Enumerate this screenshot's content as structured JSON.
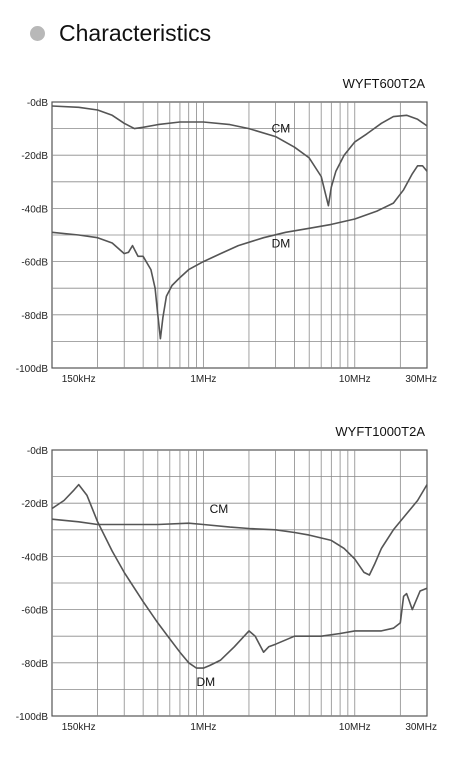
{
  "header": {
    "title": "Characteristics",
    "bullet_color": "#b8b8b8"
  },
  "chart_data": [
    {
      "type": "line",
      "title": "WYFT600T2A",
      "xscale": "log",
      "xlim_hz": [
        100000,
        30000000
      ],
      "ylim": [
        -100,
        0
      ],
      "yticks": [
        "-0dB",
        "-20dB",
        "-40dB",
        "-60dB",
        "-80dB",
        "-100dB"
      ],
      "ytick_values": [
        0,
        -20,
        -40,
        -60,
        -80,
        -100
      ],
      "xticks": [
        "150kHz",
        "1MHz",
        "10MHz",
        "30MHz"
      ],
      "xtick_values_hz": [
        150000,
        1000000,
        10000000,
        30000000
      ],
      "grid": true,
      "line_color": "#555555",
      "series": [
        {
          "name": "CM",
          "x_hz": [
            100000,
            150000,
            200000,
            250000,
            300000,
            350000,
            400000,
            500000,
            700000,
            1000000,
            1500000,
            2000000,
            3000000,
            4000000,
            5000000,
            6000000,
            6700000,
            7000000,
            7500000,
            8500000,
            10000000,
            12000000,
            15000000,
            18000000,
            22000000,
            26000000,
            30000000
          ],
          "y": [
            -1.5,
            -2,
            -3,
            -5,
            -8,
            -10,
            -9.5,
            -8.5,
            -7.5,
            -7.5,
            -8.5,
            -10,
            -13,
            -17,
            -21,
            -28,
            -39,
            -32,
            -26,
            -20,
            -15,
            -12,
            -8,
            -5.5,
            -5,
            -6.5,
            -9
          ]
        },
        {
          "name": "DM",
          "x_hz": [
            100000,
            150000,
            200000,
            250000,
            300000,
            320000,
            340000,
            370000,
            400000,
            450000,
            480000,
            500000,
            520000,
            540000,
            570000,
            620000,
            700000,
            800000,
            1000000,
            1300000,
            1700000,
            2500000,
            3500000,
            5000000,
            7000000,
            10000000,
            14000000,
            18000000,
            21000000,
            24000000,
            26000000,
            28000000,
            30000000
          ],
          "y": [
            -49,
            -50,
            -51,
            -53,
            -57,
            -56.5,
            -54,
            -58,
            -58,
            -63,
            -70,
            -80,
            -89,
            -81,
            -73,
            -69,
            -66,
            -63,
            -60,
            -57,
            -54,
            -51,
            -49,
            -47.5,
            -46,
            -44,
            -41,
            -38,
            -33,
            -27,
            -24,
            -24,
            -26
          ]
        }
      ]
    },
    {
      "type": "line",
      "title": "WYFT1000T2A",
      "xscale": "log",
      "xlim_hz": [
        100000,
        30000000
      ],
      "ylim": [
        -100,
        0
      ],
      "yticks": [
        "-0dB",
        "-20dB",
        "-40dB",
        "-60dB",
        "-80dB",
        "-100dB"
      ],
      "ytick_values": [
        0,
        -20,
        -40,
        -60,
        -80,
        -100
      ],
      "xticks": [
        "150kHz",
        "1MHz",
        "10MHz",
        "30MHz"
      ],
      "xtick_values_hz": [
        150000,
        1000000,
        10000000,
        30000000
      ],
      "grid": true,
      "line_color": "#555555",
      "series": [
        {
          "name": "CM",
          "x_hz": [
            100000,
            150000,
            200000,
            300000,
            500000,
            800000,
            1000000,
            1500000,
            2000000,
            3000000,
            4000000,
            5000000,
            7000000,
            8500000,
            10000000,
            11500000,
            12500000,
            13500000,
            15000000,
            18000000,
            22000000,
            26000000,
            30000000
          ],
          "y": [
            -26,
            -27,
            -28,
            -28,
            -28,
            -27.5,
            -28,
            -29,
            -29.5,
            -30,
            -31,
            -32,
            -34,
            -37,
            -41,
            -46,
            -47,
            -43,
            -37,
            -30,
            -24,
            -19,
            -13
          ]
        },
        {
          "name": "DM",
          "x_hz": [
            100000,
            120000,
            140000,
            150000,
            170000,
            200000,
            250000,
            300000,
            400000,
            500000,
            600000,
            700000,
            800000,
            900000,
            1000000,
            1100000,
            1300000,
            1600000,
            2000000,
            2200000,
            2500000,
            2700000,
            3000000,
            4000000,
            5000000,
            6000000,
            8000000,
            10000000,
            15000000,
            18000000,
            20000000,
            21000000,
            22000000,
            23000000,
            24000000,
            27000000,
            30000000
          ],
          "y": [
            -22,
            -19,
            -15,
            -13,
            -17,
            -27,
            -38,
            -46,
            -57,
            -65,
            -71,
            -76,
            -80,
            -82,
            -82,
            -81,
            -79,
            -74,
            -68,
            -70,
            -76,
            -74,
            -73,
            -70,
            -70,
            -70,
            -69,
            -68,
            -68,
            -67,
            -65,
            -55,
            -54,
            -57,
            -60,
            -53,
            -52
          ]
        }
      ]
    }
  ]
}
